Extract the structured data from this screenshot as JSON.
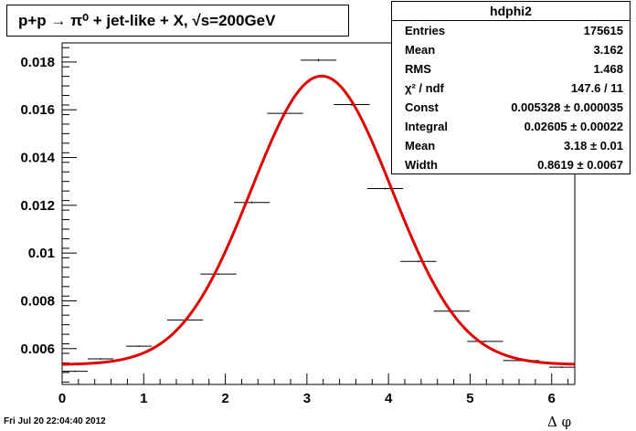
{
  "chart_data": {
    "type": "line",
    "title": "p+p → π⁰ + jet-like + X,  √s=200GeV",
    "xlabel": "Δ φ",
    "ylabel": "",
    "xlim": [
      0,
      6.283
    ],
    "ylim": [
      0.0045,
      0.0188
    ],
    "x_ticks": [
      {
        "value": 0,
        "label": "0"
      },
      {
        "value": 1,
        "label": "1"
      },
      {
        "value": 2,
        "label": "2"
      },
      {
        "value": 3,
        "label": "3"
      },
      {
        "value": 4,
        "label": "4"
      },
      {
        "value": 5,
        "label": "5"
      },
      {
        "value": 6,
        "label": "6"
      }
    ],
    "y_ticks": [
      {
        "value": 0.006,
        "label": "0.006"
      },
      {
        "value": 0.008,
        "label": "0.008"
      },
      {
        "value": 0.01,
        "label": "0.01"
      },
      {
        "value": 0.012,
        "label": "0.012"
      },
      {
        "value": 0.014,
        "label": "0.014"
      },
      {
        "value": 0.016,
        "label": "0.016"
      },
      {
        "value": 0.018,
        "label": "0.018"
      }
    ],
    "grid": false,
    "series": [
      {
        "kind": "histogram",
        "bins": [
          {
            "x": 0.157,
            "xerr": 0.157,
            "y": 0.00505,
            "yerr": 3e-05
          },
          {
            "x": 0.471,
            "xerr": 0.157,
            "y": 0.00557,
            "yerr": 3e-05
          },
          {
            "x": 0.942,
            "xerr": 0.157,
            "y": 0.0061,
            "yerr": 3e-05
          },
          {
            "x": 1.508,
            "xerr": 0.22,
            "y": 0.0072,
            "yerr": 3e-05
          },
          {
            "x": 1.916,
            "xerr": 0.22,
            "y": 0.00912,
            "yerr": 3e-05
          },
          {
            "x": 2.325,
            "xerr": 0.22,
            "y": 0.01212,
            "yerr": 4e-05
          },
          {
            "x": 2.733,
            "xerr": 0.22,
            "y": 0.01585,
            "yerr": 5e-05
          },
          {
            "x": 3.142,
            "xerr": 0.22,
            "y": 0.01808,
            "yerr": 5e-05
          },
          {
            "x": 3.55,
            "xerr": 0.22,
            "y": 0.01622,
            "yerr": 5e-05
          },
          {
            "x": 3.958,
            "xerr": 0.22,
            "y": 0.0127,
            "yerr": 4e-05
          },
          {
            "x": 4.367,
            "xerr": 0.22,
            "y": 0.00965,
            "yerr": 3e-05
          },
          {
            "x": 4.775,
            "xerr": 0.22,
            "y": 0.00757,
            "yerr": 3e-05
          },
          {
            "x": 5.184,
            "xerr": 0.22,
            "y": 0.0063,
            "yerr": 3e-05
          },
          {
            "x": 5.624,
            "xerr": 0.22,
            "y": 0.0055,
            "yerr": 3e-05
          },
          {
            "x": 6.126,
            "xerr": 0.157,
            "y": 0.00522,
            "yerr": 3e-05
          }
        ],
        "color": "#000000"
      },
      {
        "kind": "fit",
        "function": "gaussian_plus_constant",
        "params": {
          "const": 0.005328,
          "amplitude": 0.012085,
          "mean": 3.18,
          "width": 0.8619
        },
        "color": "#e00000"
      }
    ]
  },
  "stats": {
    "name": "hdphi2",
    "rows": [
      {
        "label": "Entries",
        "value": "175615"
      },
      {
        "label": "Mean",
        "value": "3.162"
      },
      {
        "label": "RMS",
        "value": "1.468"
      },
      {
        "label": "χ² / ndf",
        "value": "147.6 / 11"
      },
      {
        "label": "Const",
        "value": "0.005328 ± 0.000035"
      },
      {
        "label": "Integral",
        "value": "0.02605 ± 0.00022"
      },
      {
        "label": "Mean",
        "value": "3.18 ± 0.01"
      },
      {
        "label": "Width",
        "value": "0.8619 ± 0.0067"
      }
    ]
  },
  "timestamp": "Fri Jul 20 22:04:40 2012"
}
